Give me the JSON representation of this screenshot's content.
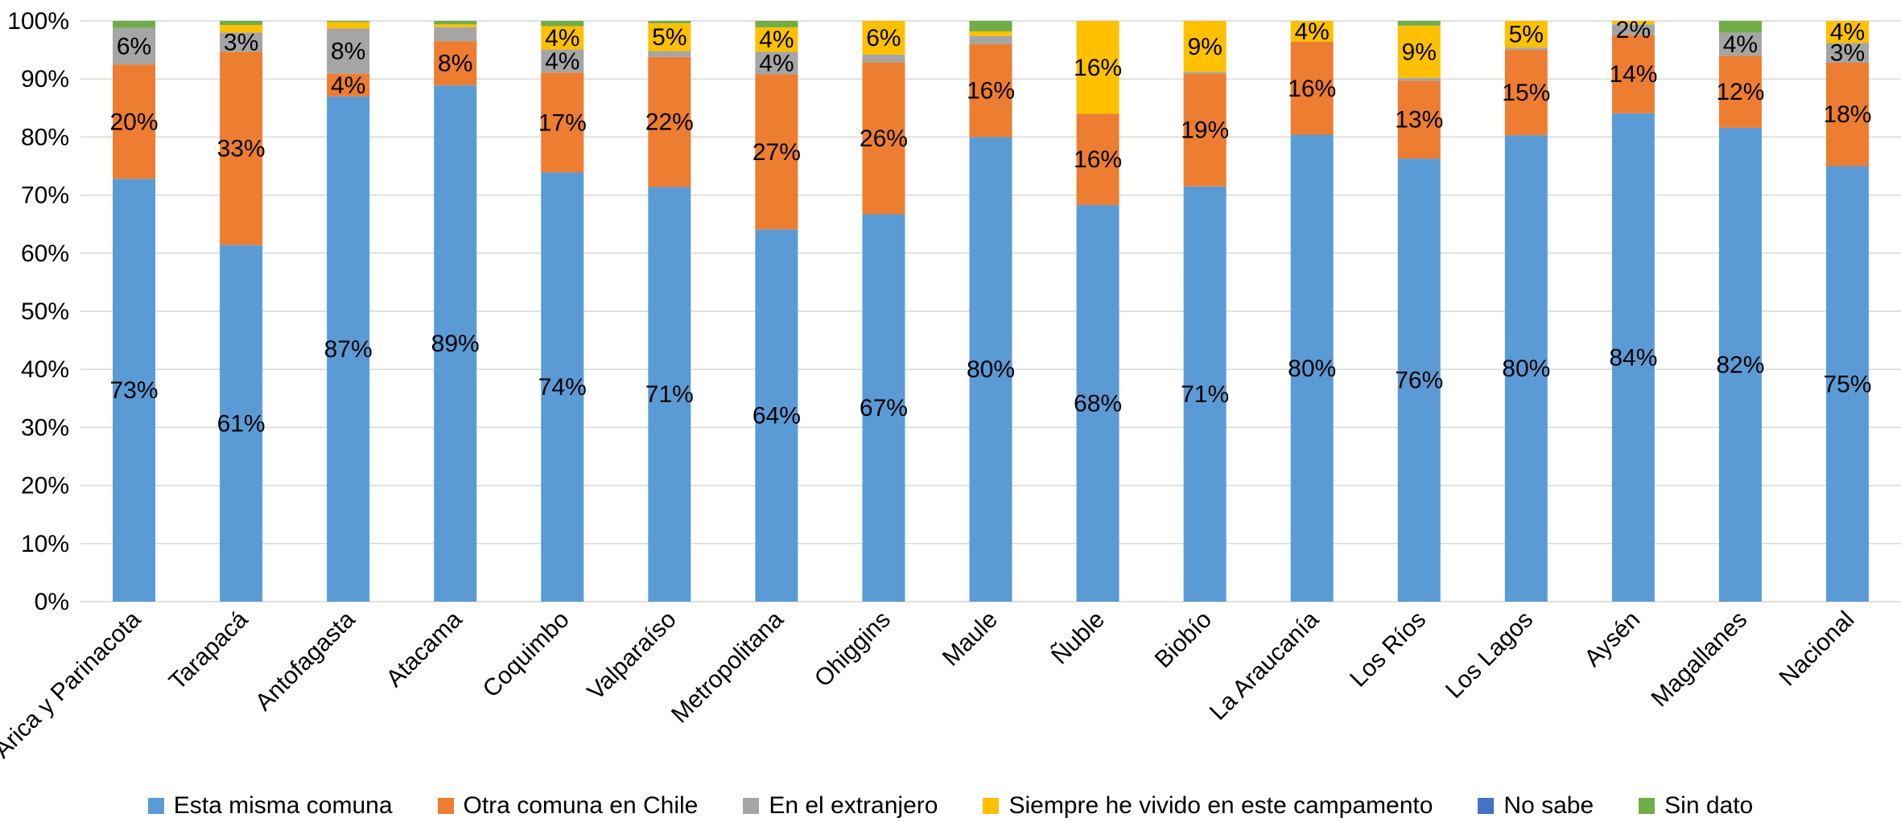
{
  "chart_data": {
    "type": "bar",
    "stacked": true,
    "ylim": [
      0,
      100
    ],
    "yticks": [
      "0%",
      "10%",
      "20%",
      "30%",
      "40%",
      "50%",
      "60%",
      "70%",
      "80%",
      "90%",
      "100%"
    ],
    "categories": [
      "Arica y Parinacota",
      "Tarapacá",
      "Antofagasta",
      "Atacama",
      "Coquimbo",
      "Valparaíso",
      "Metropolitana",
      "Ohiggins",
      "Maule",
      "Ñuble",
      "Biobío",
      "La Araucanía",
      "Los Ríos",
      "Los Lagos",
      "Aysén",
      "Magallanes",
      "Nacional"
    ],
    "legend_position": "bottom",
    "grid": "horizontal",
    "series": [
      {
        "name": "Esta misma comuna",
        "color": "#5B9BD5",
        "values": [
          72.8,
          61.4,
          87.0,
          88.9,
          73.9,
          71.4,
          64.1,
          66.7,
          80.0,
          68.3,
          71.5,
          80.4,
          76.3,
          80.3,
          84.1,
          81.6,
          75.0
        ],
        "labels": [
          "73%",
          "61%",
          "87%",
          "89%",
          "74%",
          "71%",
          "64%",
          "67%",
          "80%",
          "68%",
          "71%",
          "80%",
          "76%",
          "80%",
          "84%",
          "82%",
          "75%"
        ]
      },
      {
        "name": "Otra comuna en Chile",
        "color": "#ED7D31",
        "values": [
          19.7,
          33.3,
          3.9,
          7.6,
          17.2,
          22.4,
          26.7,
          26.2,
          16.0,
          15.7,
          19.4,
          16.0,
          13.4,
          14.7,
          13.5,
          12.4,
          17.8
        ],
        "labels": [
          "20%",
          "33%",
          "4%",
          "8%",
          "17%",
          "22%",
          "27%",
          "26%",
          "16%",
          "16%",
          "19%",
          "16%",
          "13%",
          "15%",
          "14%",
          "12%",
          "18%"
        ]
      },
      {
        "name": "En el extranjero",
        "color": "#A5A5A5",
        "values": [
          6.3,
          3.3,
          7.8,
          2.4,
          4.0,
          1.0,
          3.9,
          1.3,
          1.4,
          0,
          0.3,
          0,
          0.5,
          0.4,
          1.8,
          4.0,
          3.4
        ],
        "labels": [
          "6%",
          "3%",
          "8%",
          "",
          "4%",
          "",
          "4%",
          "",
          "",
          "",
          "",
          "",
          "",
          "",
          "2%",
          "4%",
          "3%"
        ]
      },
      {
        "name": "Siempre he vivido en este campamento",
        "color": "#FFC000",
        "values": [
          0,
          1.3,
          1.1,
          0.5,
          4.0,
          4.8,
          4.2,
          5.8,
          0.8,
          16.0,
          8.8,
          3.6,
          9.0,
          4.6,
          0.6,
          0,
          3.9
        ],
        "labels": [
          "",
          "",
          "",
          "",
          "4%",
          "5%",
          "4%",
          "6%",
          "",
          "16%",
          "9%",
          "4%",
          "9%",
          "5%",
          "",
          "",
          "4%"
        ]
      },
      {
        "name": "No sabe",
        "color": "#4472C4",
        "values": [
          0,
          0,
          0,
          0,
          0,
          0,
          0,
          0,
          0,
          0,
          0,
          0,
          0,
          0,
          0,
          0,
          0
        ],
        "labels": [
          "",
          "",
          "",
          "",
          "",
          "",
          "",
          "",
          "",
          "",
          "",
          "",
          "",
          "",
          "",
          "",
          ""
        ]
      },
      {
        "name": "Sin dato",
        "color": "#70AD47",
        "values": [
          1.2,
          0.7,
          0.2,
          0.6,
          0.9,
          0.4,
          1.1,
          0.0,
          1.8,
          0,
          0.0,
          0.0,
          0.8,
          0.0,
          0.0,
          2.0,
          0.0
        ],
        "labels": [
          "",
          "",
          "",
          "",
          "",
          "",
          "",
          "",
          "",
          "",
          "",
          "",
          "",
          "",
          "",
          "",
          ""
        ]
      }
    ]
  }
}
